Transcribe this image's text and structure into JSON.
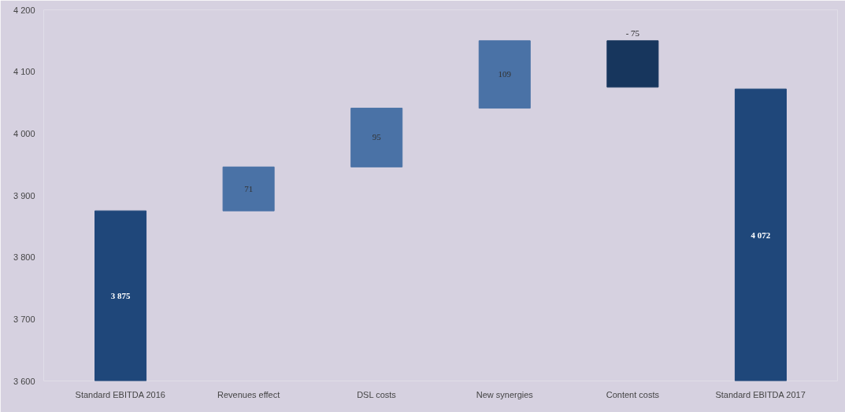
{
  "chart_data": {
    "type": "bar",
    "categories": [
      "Standard EBITDA 2016",
      "Revenues effect",
      "DSL costs",
      "New synergies",
      "Content costs",
      "Standard EBITDA 2017"
    ],
    "values": [
      3875,
      71,
      95,
      109,
      -75,
      4072
    ],
    "base": [
      null,
      3875,
      3946,
      4041,
      4150,
      null
    ],
    "colors": [
      "#1f477a",
      "#4a72a6",
      "#4a72a6",
      "#4a72a6",
      "#17365d",
      "#1f477a"
    ],
    "value_labels": [
      "3 875",
      "71",
      "95",
      "109",
      "- 75",
      "4 072"
    ],
    "ylim": [
      3600,
      4200
    ],
    "yticks": [
      {
        "value": 3600,
        "label": "3 600"
      },
      {
        "value": 3700,
        "label": "3 700"
      },
      {
        "value": 3800,
        "label": "3 800"
      },
      {
        "value": 3900,
        "label": "3 900"
      },
      {
        "value": 4000,
        "label": "4 000"
      },
      {
        "value": 4100,
        "label": "4 100"
      },
      {
        "value": 4200,
        "label": "4 200"
      }
    ],
    "grid": false
  }
}
